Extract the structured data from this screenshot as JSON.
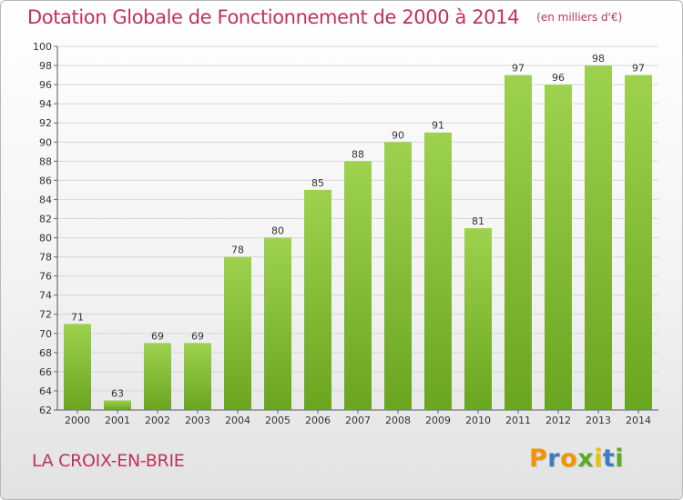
{
  "chart_data": {
    "type": "bar",
    "title": "Dotation Globale de Fonctionnement de 2000 à 2014",
    "subtitle": "(en milliers d'€)",
    "categories": [
      "2000",
      "2001",
      "2002",
      "2003",
      "2004",
      "2005",
      "2006",
      "2007",
      "2008",
      "2009",
      "2010",
      "2011",
      "2012",
      "2013",
      "2014"
    ],
    "values": [
      71,
      63,
      69,
      69,
      78,
      80,
      85,
      88,
      90,
      91,
      81,
      97,
      96,
      98,
      97
    ],
    "ylim": [
      62,
      100
    ],
    "ytick_step": 2,
    "grid": true,
    "bar_color_top": "#9ed24e",
    "bar_color_bottom": "#6aa520"
  },
  "commune": "LA CROIX-EN-BRIE",
  "logo": {
    "letters": [
      "P",
      "r",
      "o",
      "x",
      "i",
      "t",
      "i"
    ],
    "colors": [
      "#f29400",
      "#3a7cc6",
      "#f29400",
      "#5aab2a",
      "#e8c500",
      "#3a7cc6",
      "#5aab2a"
    ]
  }
}
